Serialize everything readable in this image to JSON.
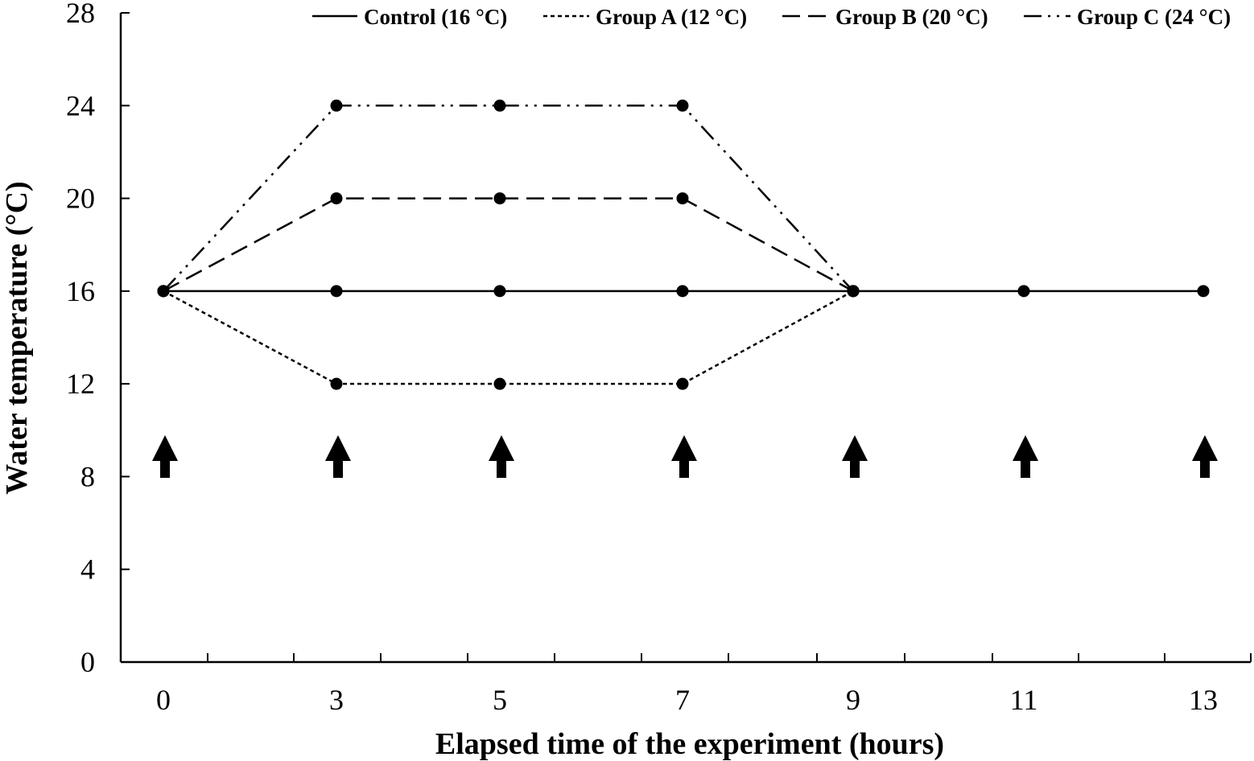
{
  "chart_data": {
    "type": "line",
    "title": "",
    "xlabel": "Elapsed time of the experiment (hours)",
    "ylabel": "Water temperature (°C)",
    "x": [
      0,
      3,
      5,
      7,
      9,
      11,
      13
    ],
    "x_tick_labels": [
      "0",
      "3",
      "5",
      "7",
      "9",
      "11",
      "13"
    ],
    "y_ticks": [
      0,
      4,
      8,
      12,
      16,
      20,
      24,
      28
    ],
    "ylim": [
      0,
      28
    ],
    "grid": false,
    "legend_position": "top",
    "series": [
      {
        "name": "Control (16 °C)",
        "style": "solid",
        "x": [
          0,
          3,
          5,
          7,
          9,
          11,
          13
        ],
        "values": [
          16,
          16,
          16,
          16,
          16,
          16,
          16
        ]
      },
      {
        "name": "Group A (12 °C)",
        "style": "dotted",
        "x": [
          0,
          3,
          5,
          7,
          9
        ],
        "values": [
          16,
          12,
          12,
          12,
          16
        ]
      },
      {
        "name": "Group B (20 °C)",
        "style": "dashed",
        "x": [
          0,
          3,
          5,
          7,
          9
        ],
        "values": [
          16,
          20,
          20,
          20,
          16
        ]
      },
      {
        "name": "Group C (24 °C)",
        "style": "dash-dot-dot",
        "x": [
          0,
          3,
          5,
          7,
          9
        ],
        "values": [
          16,
          24,
          24,
          24,
          16
        ]
      }
    ],
    "sampling_arrows_at": [
      0,
      3,
      5,
      7,
      9,
      11,
      13
    ],
    "colors": {
      "line": "#000000",
      "background": "#ffffff"
    }
  }
}
